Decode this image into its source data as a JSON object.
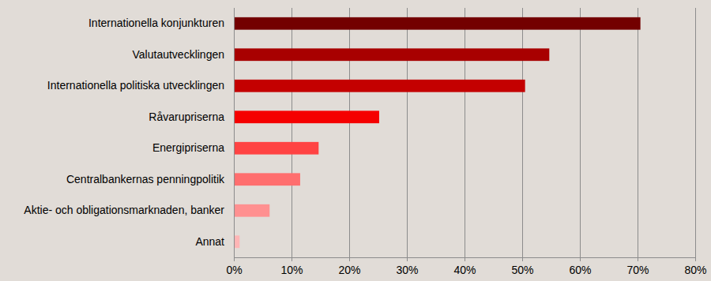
{
  "chart_data": {
    "type": "bar",
    "orientation": "horizontal",
    "categories": [
      "Internationella konjunkturen",
      "Valutautvecklingen",
      "Internationella politiska utvecklingen",
      "Råvarupriserna",
      "Energipriserna",
      "Centralbankernas penningpolitik",
      "Aktie- och obligationsmarknaden, banker",
      "Annat"
    ],
    "values": [
      70.5,
      54.7,
      50.5,
      25.2,
      14.7,
      11.5,
      6.2,
      1.0
    ],
    "colors": [
      "#730000",
      "#a80000",
      "#c40000",
      "#f50000",
      "#ff4343",
      "#ff6e6e",
      "#ff9090",
      "#ffb5b5"
    ],
    "xlim": [
      0,
      80
    ],
    "xticks": [
      {
        "value": 0,
        "label": "0%"
      },
      {
        "value": 10,
        "label": "10%"
      },
      {
        "value": 20,
        "label": "20%"
      },
      {
        "value": 30,
        "label": "30%"
      },
      {
        "value": 40,
        "label": "40%"
      },
      {
        "value": 50,
        "label": "50%"
      },
      {
        "value": 60,
        "label": "60%"
      },
      {
        "value": 70,
        "label": "70%"
      },
      {
        "value": 80,
        "label": "80%"
      }
    ],
    "grid": true
  }
}
